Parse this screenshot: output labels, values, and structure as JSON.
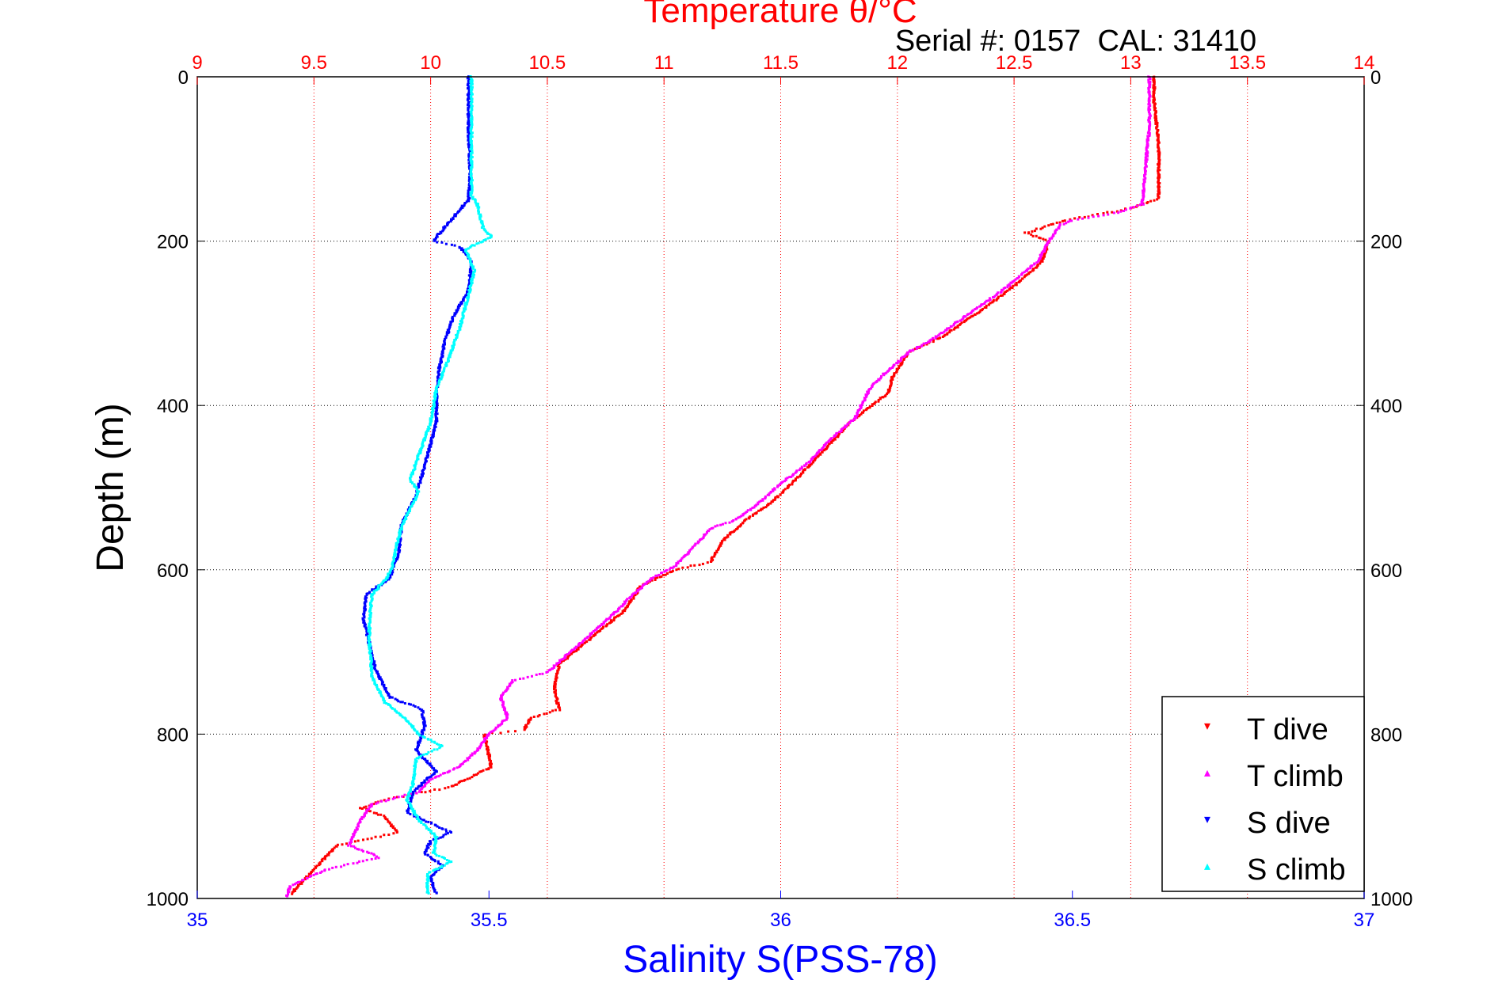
{
  "chart_data": {
    "type": "scatter",
    "title": "Temperature θ/°C",
    "subtitle": "Serial #: 0157  CAL: 31410",
    "xlabel": "Salinity S(PSS-78)",
    "ylabel": "Depth (m)",
    "top_axis": {
      "label": "Temperature θ/°C",
      "range": [
        9,
        14
      ],
      "ticks": [
        "9",
        "9.5",
        "10",
        "10.5",
        "11",
        "11.5",
        "12",
        "12.5",
        "13",
        "13.5",
        "14"
      ],
      "color": "#ff0000"
    },
    "bottom_axis": {
      "label": "Salinity S(PSS-78)",
      "range": [
        35,
        37
      ],
      "ticks": [
        "35",
        "35.5",
        "36",
        "36.5",
        "37"
      ],
      "color": "#0000ff"
    },
    "y_axis": {
      "range": [
        0,
        1000
      ],
      "reversed": true,
      "ticks": [
        "0",
        "200",
        "400",
        "600",
        "800",
        "1000"
      ]
    },
    "grid": true,
    "legend_position": "bottom-right",
    "series": [
      {
        "name": "T dive",
        "axis": "temperature",
        "color": "#ff0000",
        "marker": "▾",
        "points": [
          [
            13.1,
            0
          ],
          [
            13.1,
            30
          ],
          [
            13.12,
            80
          ],
          [
            13.12,
            148
          ],
          [
            13.0,
            160
          ],
          [
            12.72,
            175
          ],
          [
            12.55,
            190
          ],
          [
            12.65,
            200
          ],
          [
            12.62,
            225
          ],
          [
            12.5,
            255
          ],
          [
            12.33,
            290
          ],
          [
            12.2,
            315
          ],
          [
            12.05,
            335
          ],
          [
            11.98,
            365
          ],
          [
            11.96,
            385
          ],
          [
            11.8,
            420
          ],
          [
            11.65,
            465
          ],
          [
            11.53,
            500
          ],
          [
            11.45,
            520
          ],
          [
            11.35,
            540
          ],
          [
            11.25,
            565
          ],
          [
            11.2,
            590
          ],
          [
            11.05,
            600
          ],
          [
            10.9,
            620
          ],
          [
            10.83,
            650
          ],
          [
            10.7,
            680
          ],
          [
            10.55,
            715
          ],
          [
            10.53,
            745
          ],
          [
            10.55,
            770
          ],
          [
            10.43,
            780
          ],
          [
            10.4,
            795
          ],
          [
            10.23,
            800
          ],
          [
            10.26,
            840
          ],
          [
            10.08,
            865
          ],
          [
            9.98,
            870
          ],
          [
            9.8,
            880
          ],
          [
            9.7,
            890
          ],
          [
            9.8,
            900
          ],
          [
            9.86,
            920
          ],
          [
            9.6,
            935
          ],
          [
            9.5,
            965
          ],
          [
            9.4,
            995
          ]
        ]
      },
      {
        "name": "T climb",
        "axis": "temperature",
        "color": "#ff00ff",
        "marker": "▴",
        "points": [
          [
            13.08,
            0
          ],
          [
            13.08,
            60
          ],
          [
            13.06,
            120
          ],
          [
            13.05,
            155
          ],
          [
            12.95,
            165
          ],
          [
            12.75,
            175
          ],
          [
            12.7,
            180
          ],
          [
            12.65,
            200
          ],
          [
            12.6,
            225
          ],
          [
            12.45,
            260
          ],
          [
            12.3,
            290
          ],
          [
            12.15,
            320
          ],
          [
            12.05,
            335
          ],
          [
            11.95,
            360
          ],
          [
            11.88,
            380
          ],
          [
            11.82,
            415
          ],
          [
            11.7,
            445
          ],
          [
            11.62,
            470
          ],
          [
            11.5,
            495
          ],
          [
            11.38,
            525
          ],
          [
            11.3,
            540
          ],
          [
            11.2,
            550
          ],
          [
            11.15,
            565
          ],
          [
            11.05,
            595
          ],
          [
            10.95,
            610
          ],
          [
            10.85,
            635
          ],
          [
            10.78,
            655
          ],
          [
            10.6,
            700
          ],
          [
            10.5,
            725
          ],
          [
            10.35,
            735
          ],
          [
            10.3,
            755
          ],
          [
            10.33,
            780
          ],
          [
            10.25,
            800
          ],
          [
            10.2,
            820
          ],
          [
            10.12,
            840
          ],
          [
            10.0,
            855
          ],
          [
            9.95,
            870
          ],
          [
            9.75,
            885
          ],
          [
            9.7,
            905
          ],
          [
            9.65,
            935
          ],
          [
            9.78,
            950
          ],
          [
            9.55,
            965
          ],
          [
            9.4,
            985
          ],
          [
            9.38,
            998
          ]
        ]
      },
      {
        "name": "S dive",
        "axis": "salinity",
        "color": "#0000ff",
        "marker": "▾",
        "points": [
          [
            35.465,
            0
          ],
          [
            35.465,
            60
          ],
          [
            35.468,
            120
          ],
          [
            35.465,
            150
          ],
          [
            35.44,
            170
          ],
          [
            35.41,
            195
          ],
          [
            35.405,
            200
          ],
          [
            35.45,
            207
          ],
          [
            35.47,
            225
          ],
          [
            35.465,
            260
          ],
          [
            35.44,
            290
          ],
          [
            35.425,
            320
          ],
          [
            35.415,
            355
          ],
          [
            35.41,
            390
          ],
          [
            35.41,
            420
          ],
          [
            35.395,
            460
          ],
          [
            35.375,
            510
          ],
          [
            35.35,
            545
          ],
          [
            35.345,
            580
          ],
          [
            35.33,
            610
          ],
          [
            35.29,
            630
          ],
          [
            35.285,
            660
          ],
          [
            35.295,
            690
          ],
          [
            35.305,
            720
          ],
          [
            35.33,
            755
          ],
          [
            35.385,
            770
          ],
          [
            35.39,
            790
          ],
          [
            35.375,
            820
          ],
          [
            35.41,
            845
          ],
          [
            35.37,
            870
          ],
          [
            35.36,
            895
          ],
          [
            35.39,
            905
          ],
          [
            35.435,
            920
          ],
          [
            35.4,
            930
          ],
          [
            35.39,
            945
          ],
          [
            35.42,
            960
          ],
          [
            35.4,
            975
          ],
          [
            35.41,
            995
          ]
        ]
      },
      {
        "name": "S climb",
        "axis": "salinity",
        "color": "#00ffff",
        "marker": "▴",
        "points": [
          [
            35.47,
            0
          ],
          [
            35.47,
            60
          ],
          [
            35.47,
            110
          ],
          [
            35.47,
            145
          ],
          [
            35.48,
            155
          ],
          [
            35.49,
            185
          ],
          [
            35.505,
            195
          ],
          [
            35.46,
            210
          ],
          [
            35.475,
            235
          ],
          [
            35.465,
            265
          ],
          [
            35.45,
            305
          ],
          [
            35.43,
            345
          ],
          [
            35.41,
            380
          ],
          [
            35.4,
            420
          ],
          [
            35.385,
            450
          ],
          [
            35.365,
            490
          ],
          [
            35.38,
            505
          ],
          [
            35.355,
            540
          ],
          [
            35.345,
            560
          ],
          [
            35.335,
            595
          ],
          [
            35.325,
            610
          ],
          [
            35.3,
            630
          ],
          [
            35.295,
            660
          ],
          [
            35.295,
            690
          ],
          [
            35.3,
            730
          ],
          [
            35.32,
            760
          ],
          [
            35.355,
            780
          ],
          [
            35.38,
            800
          ],
          [
            35.42,
            815
          ],
          [
            35.375,
            830
          ],
          [
            35.37,
            860
          ],
          [
            35.36,
            880
          ],
          [
            35.38,
            905
          ],
          [
            35.41,
            925
          ],
          [
            35.405,
            945
          ],
          [
            35.435,
            955
          ],
          [
            35.395,
            970
          ],
          [
            35.395,
            995
          ]
        ]
      }
    ],
    "legend": [
      "T dive",
      "T climb",
      "S dive",
      "S climb"
    ]
  }
}
